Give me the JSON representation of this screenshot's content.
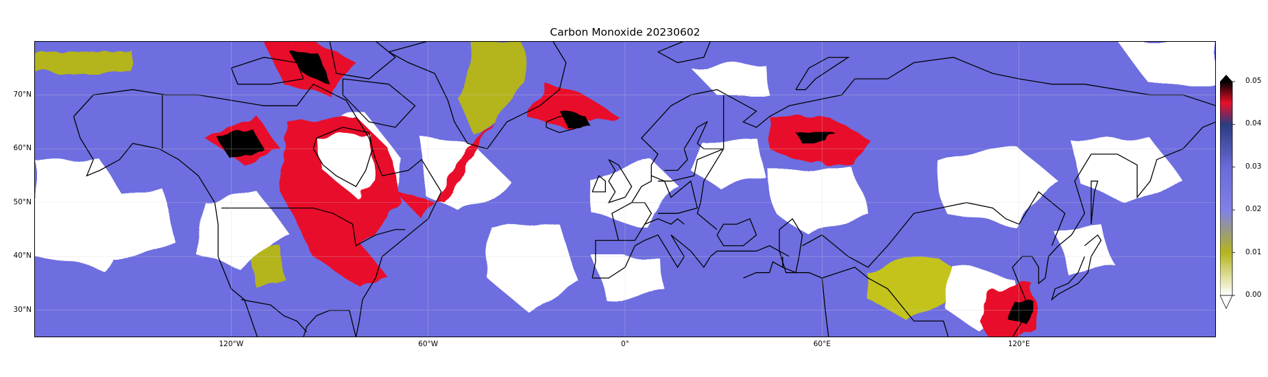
{
  "title": "Carbon Monoxide 20230602",
  "map": {
    "projection": "plate-carree",
    "lon_range": [
      -180,
      180
    ],
    "lat_range": [
      25,
      80
    ],
    "background_color": "#6e6ee0",
    "lat_ticks": [
      {
        "value": 70,
        "label": "70°N"
      },
      {
        "value": 60,
        "label": "60°N"
      },
      {
        "value": 50,
        "label": "50°N"
      },
      {
        "value": 40,
        "label": "40°N"
      },
      {
        "value": 30,
        "label": "30°N"
      }
    ],
    "lon_ticks": [
      {
        "value": -120,
        "label": "120°W"
      },
      {
        "value": -60,
        "label": "60°W"
      },
      {
        "value": 0,
        "label": "0°"
      },
      {
        "value": 60,
        "label": "60°E"
      },
      {
        "value": 120,
        "label": "120°E"
      }
    ],
    "regions": [
      {
        "name": "alaska-canada-fire-plume",
        "level": "very-high",
        "color": "#000000"
      },
      {
        "name": "canada-smoke",
        "level": "high",
        "color": "#e8102a"
      },
      {
        "name": "greenland-low",
        "level": "low",
        "color": "#b4b41e"
      },
      {
        "name": "siberia-plume",
        "level": "high",
        "color": "#e8102a"
      },
      {
        "name": "tibet-low",
        "level": "low",
        "color": "#c3c31e"
      },
      {
        "name": "east-asia-high",
        "level": "high",
        "color": "#e8102a"
      },
      {
        "name": "cloud-gaps",
        "level": "no-data",
        "color": "#ffffff"
      }
    ]
  },
  "colorbar": {
    "min": 0.0,
    "max": 0.05,
    "extend": "both",
    "ticks": [
      {
        "value": 0.05,
        "label": "0.05"
      },
      {
        "value": 0.04,
        "label": "0.04"
      },
      {
        "value": 0.03,
        "label": "0.03"
      },
      {
        "value": 0.02,
        "label": "0.02"
      },
      {
        "value": 0.01,
        "label": "0.01"
      },
      {
        "value": 0.0,
        "label": "0.00"
      }
    ],
    "stops": [
      {
        "value": 0.0,
        "color": "#ffffff"
      },
      {
        "value": 0.01,
        "color": "#b4b41e"
      },
      {
        "value": 0.02,
        "color": "#8080e6"
      },
      {
        "value": 0.03,
        "color": "#6a6ad8"
      },
      {
        "value": 0.04,
        "color": "#2c3c80"
      },
      {
        "value": 0.045,
        "color": "#e8102a"
      },
      {
        "value": 0.05,
        "color": "#000000"
      }
    ]
  }
}
